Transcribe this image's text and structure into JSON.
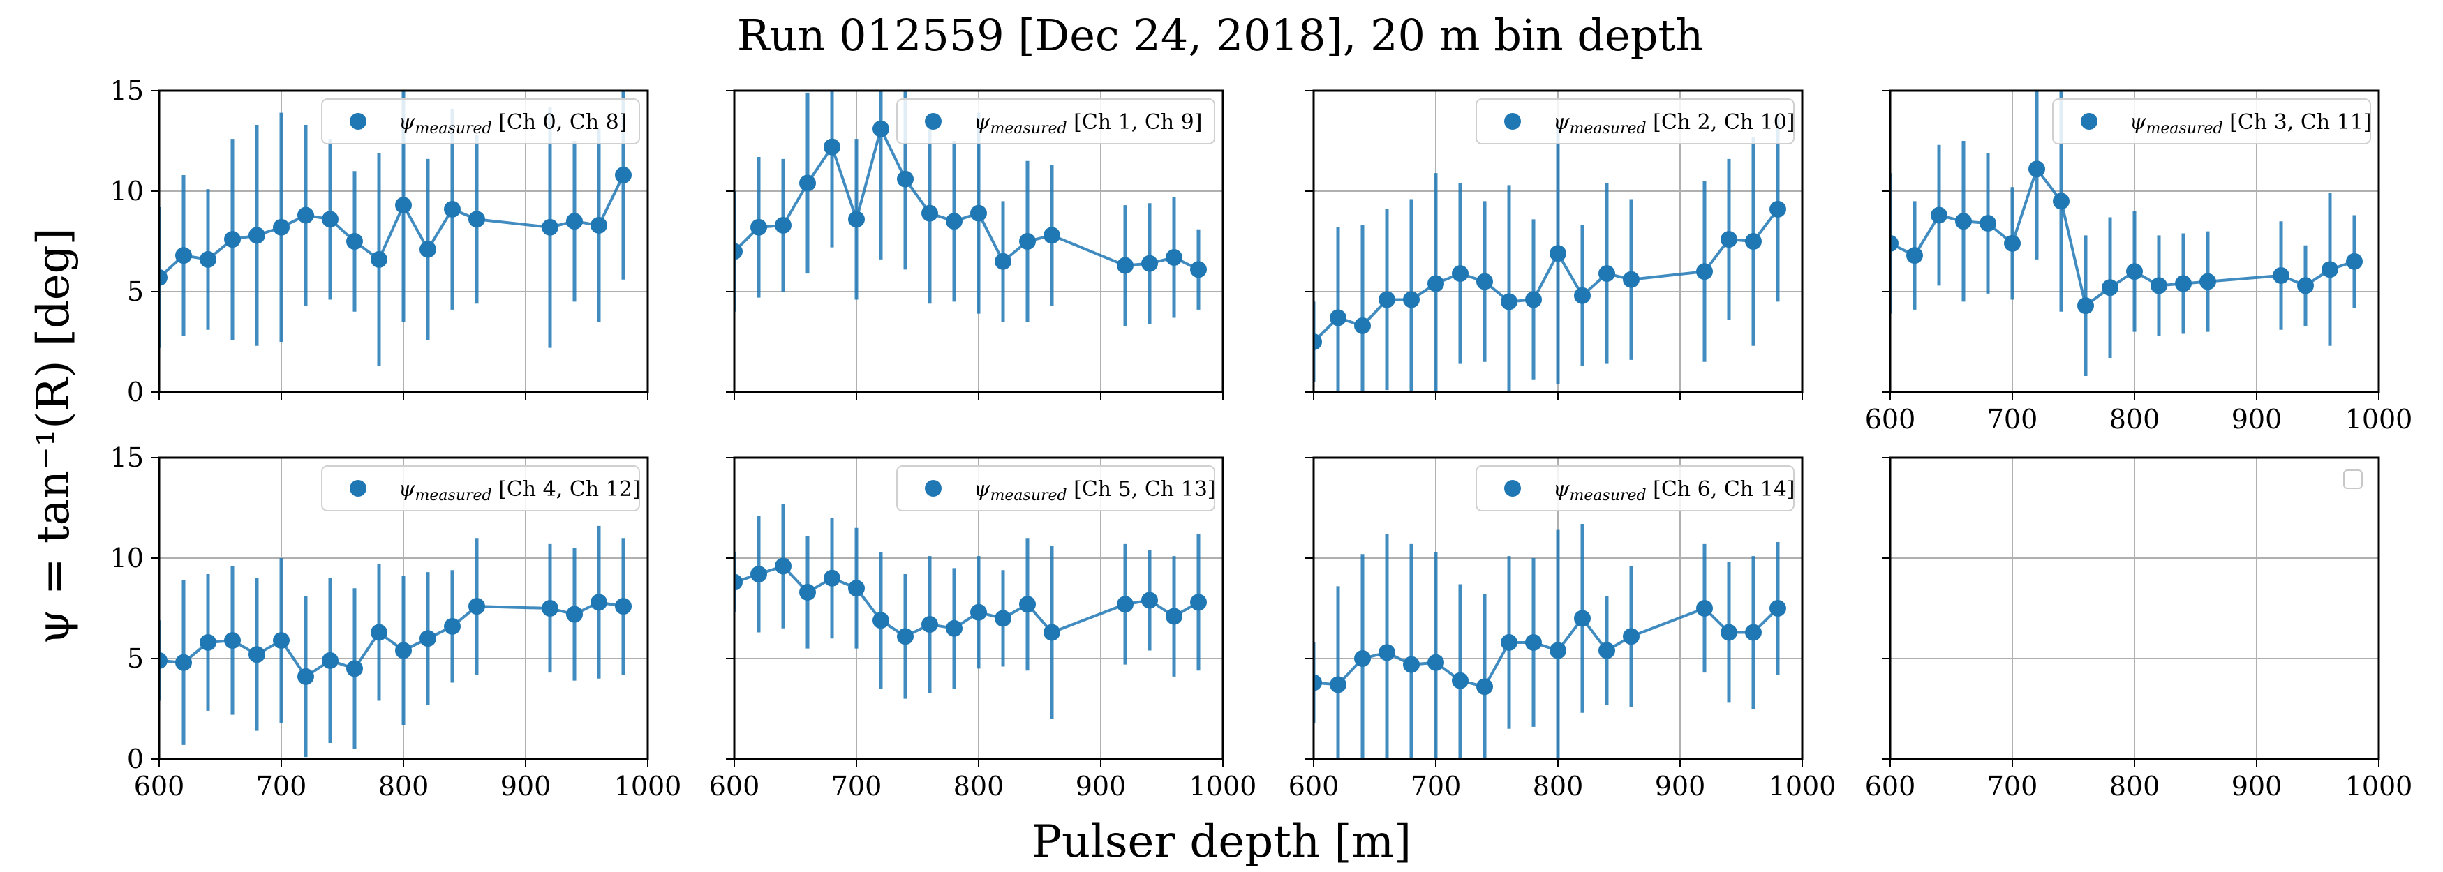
{
  "figure": {
    "title": "Run 012559 [Dec 24, 2018], 20 m bin depth",
    "xlabel": "Pulser depth [m]",
    "ylabel": "ψ = tan⁻¹(R) [deg]",
    "series_color": "#1f77b4",
    "grid_color": "#b0b0b0"
  },
  "chart_data": [
    {
      "type": "scatter",
      "panel": "Ch 0, Ch 8",
      "legend": "[Ch 0, Ch 8]",
      "legend_symbol": "ψmeasured",
      "legend_position": "upper right",
      "x_ticks": [
        600,
        700,
        800,
        900,
        1000
      ],
      "y_ticks": [
        0,
        5,
        10,
        15
      ],
      "xlim": [
        600,
        1000
      ],
      "ylim": [
        0,
        15
      ],
      "grid": true,
      "error_bars": true,
      "x": [
        600,
        620,
        640,
        660,
        680,
        700,
        720,
        740,
        760,
        780,
        800,
        820,
        840,
        860,
        920,
        940,
        960,
        980
      ],
      "y": [
        5.7,
        6.8,
        6.6,
        7.6,
        7.8,
        8.2,
        8.8,
        8.6,
        7.5,
        6.6,
        9.3,
        7.1,
        9.1,
        8.6,
        8.2,
        8.5,
        8.3,
        10.8
      ],
      "yerr": [
        3.5,
        4.0,
        3.5,
        5.0,
        5.5,
        5.7,
        4.5,
        4.0,
        3.5,
        5.3,
        5.8,
        4.5,
        5.0,
        4.2,
        6.0,
        4.0,
        4.8,
        5.2
      ]
    },
    {
      "type": "scatter",
      "panel": "Ch 1, Ch 9",
      "legend": "[Ch 1, Ch 9]",
      "legend_symbol": "ψmeasured",
      "legend_position": "upper right",
      "x_ticks": [
        600,
        700,
        800,
        900,
        1000
      ],
      "y_ticks": [
        0,
        5,
        10,
        15
      ],
      "xlim": [
        600,
        1000
      ],
      "ylim": [
        0,
        15
      ],
      "grid": true,
      "error_bars": true,
      "x": [
        600,
        620,
        640,
        660,
        680,
        700,
        720,
        740,
        760,
        780,
        800,
        820,
        840,
        860,
        920,
        940,
        960,
        980
      ],
      "y": [
        7.0,
        8.2,
        8.3,
        10.4,
        12.2,
        8.6,
        13.1,
        10.6,
        8.9,
        8.5,
        8.9,
        6.5,
        7.5,
        7.8,
        6.3,
        6.4,
        6.7,
        6.1
      ],
      "yerr": [
        3.0,
        3.5,
        3.3,
        4.5,
        5.0,
        4.0,
        6.5,
        4.5,
        4.5,
        4.0,
        5.0,
        3.0,
        4.0,
        3.5,
        3.0,
        3.0,
        3.0,
        2.0
      ]
    },
    {
      "type": "scatter",
      "panel": "Ch 2, Ch 10",
      "legend": "[Ch 2, Ch 10]",
      "legend_symbol": "ψmeasured",
      "legend_position": "upper right",
      "x_ticks": [
        600,
        700,
        800,
        900,
        1000
      ],
      "y_ticks": [
        0,
        5,
        10,
        15
      ],
      "xlim": [
        600,
        1000
      ],
      "ylim": [
        0,
        15
      ],
      "grid": true,
      "error_bars": true,
      "x": [
        600,
        620,
        640,
        660,
        680,
        700,
        720,
        740,
        760,
        780,
        800,
        820,
        840,
        860,
        920,
        940,
        960,
        980
      ],
      "y": [
        2.5,
        3.7,
        3.3,
        4.6,
        4.6,
        5.4,
        5.9,
        5.5,
        4.5,
        4.6,
        6.9,
        4.8,
        5.9,
        5.6,
        6.0,
        7.6,
        7.5,
        9.1
      ],
      "yerr": [
        2.0,
        4.5,
        5.0,
        4.5,
        5.0,
        5.5,
        4.5,
        4.0,
        5.8,
        4.0,
        6.5,
        3.5,
        4.5,
        4.0,
        4.5,
        4.0,
        5.2,
        4.6
      ]
    },
    {
      "type": "scatter",
      "panel": "Ch 3, Ch 11",
      "legend": "[Ch 3, Ch 11]",
      "legend_symbol": "ψmeasured",
      "legend_position": "upper right",
      "x_ticks": [
        600,
        700,
        800,
        900,
        1000
      ],
      "y_ticks": [
        0,
        5,
        10,
        15
      ],
      "xlim": [
        600,
        1000
      ],
      "ylim": [
        0,
        15
      ],
      "grid": true,
      "error_bars": true,
      "x": [
        600,
        620,
        640,
        660,
        680,
        700,
        720,
        740,
        760,
        780,
        800,
        820,
        840,
        860,
        920,
        940,
        960,
        980
      ],
      "y": [
        7.4,
        6.8,
        8.8,
        8.5,
        8.4,
        7.4,
        11.1,
        9.5,
        4.3,
        5.2,
        6.0,
        5.3,
        5.4,
        5.5,
        5.8,
        5.3,
        6.1,
        6.5
      ],
      "yerr": [
        3.5,
        2.7,
        3.5,
        4.0,
        3.5,
        2.8,
        4.5,
        5.5,
        3.5,
        3.5,
        3.0,
        2.5,
        2.5,
        2.5,
        2.7,
        2.0,
        3.8,
        2.3
      ]
    },
    {
      "type": "scatter",
      "panel": "Ch 4, Ch 12",
      "legend": "[Ch 4, Ch 12]",
      "legend_symbol": "ψmeasured",
      "legend_position": "upper right",
      "x_ticks": [
        600,
        700,
        800,
        900,
        1000
      ],
      "y_ticks": [
        0,
        5,
        10,
        15
      ],
      "xlim": [
        600,
        1000
      ],
      "ylim": [
        0,
        15
      ],
      "grid": true,
      "error_bars": true,
      "x": [
        600,
        620,
        640,
        660,
        680,
        700,
        720,
        740,
        760,
        780,
        800,
        820,
        840,
        860,
        920,
        940,
        960,
        980
      ],
      "y": [
        4.9,
        4.8,
        5.8,
        5.9,
        5.2,
        5.9,
        4.1,
        4.9,
        4.5,
        6.3,
        5.4,
        6.0,
        6.6,
        7.6,
        7.5,
        7.2,
        7.8,
        7.6
      ],
      "yerr": [
        2.0,
        4.1,
        3.4,
        3.7,
        3.8,
        4.1,
        4.0,
        4.1,
        4.0,
        3.4,
        3.7,
        3.3,
        2.8,
        3.4,
        3.2,
        3.3,
        3.8,
        3.4
      ]
    },
    {
      "type": "scatter",
      "panel": "Ch 5, Ch 13",
      "legend": "[Ch 5, Ch 13]",
      "legend_symbol": "ψmeasured",
      "legend_position": "upper right",
      "x_ticks": [
        600,
        700,
        800,
        900,
        1000
      ],
      "y_ticks": [
        0,
        5,
        10,
        15
      ],
      "xlim": [
        600,
        1000
      ],
      "ylim": [
        0,
        15
      ],
      "grid": true,
      "error_bars": true,
      "x": [
        600,
        620,
        640,
        660,
        680,
        700,
        720,
        740,
        760,
        780,
        800,
        820,
        840,
        860,
        920,
        940,
        960,
        980
      ],
      "y": [
        8.8,
        9.2,
        9.6,
        8.3,
        9.0,
        8.5,
        6.9,
        6.1,
        6.7,
        6.5,
        7.3,
        7.0,
        7.7,
        6.3,
        7.7,
        7.9,
        7.1,
        7.8
      ],
      "yerr": [
        1.5,
        2.9,
        3.1,
        2.8,
        3.0,
        3.0,
        3.4,
        3.1,
        3.4,
        3.0,
        2.8,
        2.4,
        3.3,
        4.3,
        3.0,
        2.5,
        3.0,
        3.4
      ]
    },
    {
      "type": "scatter",
      "panel": "Ch 6, Ch 14",
      "legend": "[Ch 6, Ch 14]",
      "legend_symbol": "ψmeasured",
      "legend_position": "upper right",
      "x_ticks": [
        600,
        700,
        800,
        900,
        1000
      ],
      "y_ticks": [
        0,
        5,
        10,
        15
      ],
      "xlim": [
        600,
        1000
      ],
      "ylim": [
        0,
        15
      ],
      "grid": true,
      "error_bars": true,
      "x": [
        600,
        620,
        640,
        660,
        680,
        700,
        720,
        740,
        760,
        780,
        800,
        820,
        840,
        860,
        920,
        940,
        960,
        980
      ],
      "y": [
        3.8,
        3.7,
        5.0,
        5.3,
        4.7,
        4.8,
        3.9,
        3.6,
        5.8,
        5.8,
        5.4,
        7.0,
        5.4,
        6.1,
        7.5,
        6.3,
        6.3,
        7.5
      ],
      "yerr": [
        2.0,
        4.9,
        5.2,
        5.9,
        6.0,
        5.5,
        4.8,
        4.6,
        4.3,
        4.2,
        6.0,
        4.7,
        2.7,
        3.5,
        3.2,
        3.5,
        3.8,
        3.3
      ]
    },
    {
      "type": "scatter",
      "panel": "empty",
      "legend": "",
      "legend_symbol": "",
      "legend_position": "upper right",
      "x_ticks": [
        600,
        700,
        800,
        900,
        1000
      ],
      "y_ticks": [
        0,
        5,
        10,
        15
      ],
      "xlim": [
        600,
        1000
      ],
      "ylim": [
        0,
        15
      ],
      "grid": true,
      "error_bars": false,
      "x": [],
      "y": [],
      "yerr": []
    }
  ]
}
